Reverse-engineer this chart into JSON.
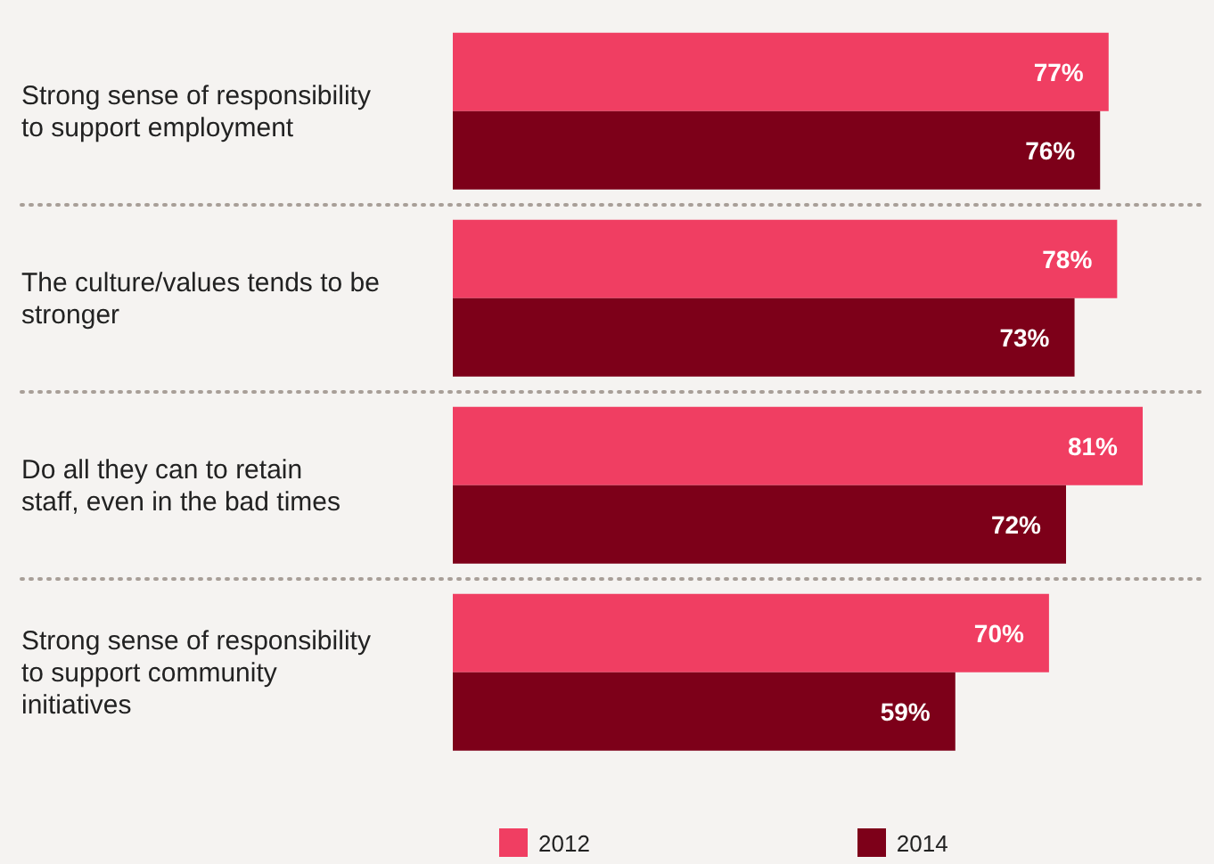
{
  "chart_data": {
    "type": "bar",
    "orientation": "horizontal",
    "categories": [
      "Strong sense of responsibility to support employment",
      "The culture/values tends to be stronger",
      "Do all they can to retain staff, even in the bad times",
      "Strong sense of responsibility to support community initiatives"
    ],
    "series": [
      {
        "name": "2012",
        "color": "#f03e62",
        "values": [
          77,
          78,
          81,
          70
        ],
        "value_labels": [
          "77%",
          "78%",
          "81%",
          "70%"
        ]
      },
      {
        "name": "2014",
        "color": "#7d0019",
        "values": [
          76,
          73,
          72,
          59
        ],
        "value_labels": [
          "76%",
          "73%",
          "72%",
          "59%"
        ]
      }
    ],
    "legend": "bottom"
  }
}
